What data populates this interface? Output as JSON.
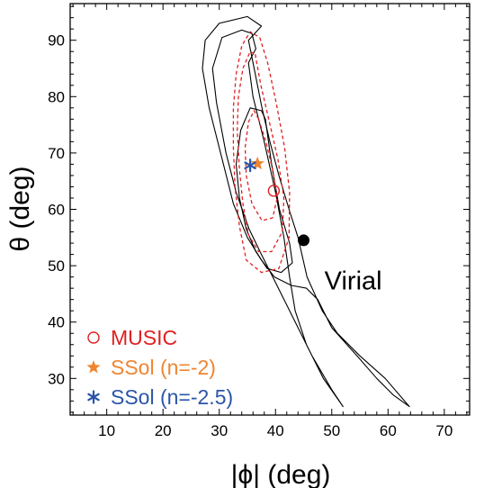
{
  "chart_data": {
    "type": "contour",
    "title": "",
    "xlabel": "|ϕ| (deg)",
    "ylabel": "θ (deg)",
    "xlim": [
      3.5,
      74.5
    ],
    "ylim": [
      23.5,
      96.5
    ],
    "xticks": [
      10,
      20,
      30,
      40,
      50,
      60,
      70
    ],
    "yticks": [
      30,
      40,
      50,
      60,
      70,
      80,
      90
    ],
    "xtick_labels": [
      "10",
      "20",
      "30",
      "40",
      "50",
      "60",
      "70"
    ],
    "ytick_labels": [
      "30",
      "40",
      "50",
      "60",
      "70",
      "80",
      "90"
    ],
    "grid": false,
    "legend_position": "bottom-left",
    "contours": [
      {
        "group": "black",
        "color": "#000000",
        "dashed": false,
        "points": [
          [
            52,
            25
          ],
          [
            48.5,
            30
          ],
          [
            45.5,
            36
          ],
          [
            43.5,
            42
          ],
          [
            42.5,
            48
          ],
          [
            41.5,
            55
          ],
          [
            40,
            63
          ],
          [
            38,
            72
          ],
          [
            36,
            80
          ],
          [
            35.2,
            86
          ],
          [
            36.5,
            88.5
          ],
          [
            35.8,
            91.2
          ],
          [
            34,
            91.8
          ],
          [
            30.5,
            90.5
          ],
          [
            28.8,
            85
          ],
          [
            29.5,
            79
          ],
          [
            31.2,
            70
          ],
          [
            33,
            63
          ],
          [
            35.3,
            56.5
          ],
          [
            37.5,
            52
          ],
          [
            40,
            47
          ],
          [
            42,
            43
          ],
          [
            44,
            39
          ],
          [
            46.5,
            34
          ],
          [
            50,
            28
          ],
          [
            52,
            25
          ]
        ]
      },
      {
        "group": "black",
        "color": "#000000",
        "dashed": false,
        "points": [
          [
            63.8,
            25
          ],
          [
            59.5,
            30
          ],
          [
            55,
            34
          ],
          [
            51,
            38
          ],
          [
            48.3,
            42
          ],
          [
            45.6,
            48
          ],
          [
            44,
            55
          ],
          [
            42.4,
            60
          ],
          [
            40.6,
            66
          ],
          [
            39,
            72
          ],
          [
            37.6,
            78
          ],
          [
            36.2,
            85
          ],
          [
            35.2,
            90
          ],
          [
            37.5,
            92.5
          ],
          [
            35,
            94.2
          ],
          [
            30,
            93
          ],
          [
            27.5,
            90
          ],
          [
            27,
            85
          ],
          [
            28.2,
            78
          ],
          [
            30.5,
            69
          ],
          [
            32.5,
            61
          ],
          [
            35,
            55
          ],
          [
            37.5,
            51
          ],
          [
            39.8,
            48
          ],
          [
            42.8,
            46.5
          ],
          [
            45.5,
            46
          ],
          [
            47.5,
            44
          ],
          [
            50,
            39
          ],
          [
            54.5,
            34
          ],
          [
            58,
            30
          ],
          [
            61,
            27
          ],
          [
            63.8,
            25
          ]
        ]
      },
      {
        "group": "black",
        "color": "#000000",
        "dashed": false,
        "points": [
          [
            38.2,
            76
          ],
          [
            39.3,
            68
          ],
          [
            40.7,
            60
          ],
          [
            42.5,
            54
          ],
          [
            43,
            50.5
          ],
          [
            41,
            48.8
          ],
          [
            38.5,
            49.5
          ],
          [
            36.5,
            52.5
          ],
          [
            34.8,
            56.5
          ],
          [
            33.6,
            62
          ],
          [
            33,
            68
          ],
          [
            33.8,
            74
          ],
          [
            35.5,
            78
          ],
          [
            37.5,
            77.5
          ],
          [
            38.2,
            76
          ]
        ]
      },
      {
        "group": "red",
        "color": "#e02020",
        "dashed": true,
        "points": [
          [
            37.2,
            90.5
          ],
          [
            38.6,
            86
          ],
          [
            40.1,
            79
          ],
          [
            41.6,
            71
          ],
          [
            42.5,
            63
          ],
          [
            42.4,
            55
          ],
          [
            40.6,
            49.5
          ],
          [
            37.5,
            48.8
          ],
          [
            34.8,
            51
          ],
          [
            33.6,
            57
          ],
          [
            32.8,
            64
          ],
          [
            32.5,
            71
          ],
          [
            32.5,
            78
          ],
          [
            33,
            84
          ],
          [
            34,
            89
          ],
          [
            35.5,
            91.5
          ],
          [
            37.2,
            90.5
          ]
        ]
      },
      {
        "group": "red",
        "color": "#e02020",
        "dashed": true,
        "points": [
          [
            36.4,
            87.5
          ],
          [
            37.4,
            82
          ],
          [
            38.8,
            76
          ],
          [
            40.4,
            69
          ],
          [
            41.5,
            62
          ],
          [
            41.2,
            56
          ],
          [
            39.3,
            52.5
          ],
          [
            37,
            52.5
          ],
          [
            35.2,
            55.5
          ],
          [
            34.2,
            61
          ],
          [
            33.6,
            67
          ],
          [
            33.2,
            74
          ],
          [
            33.4,
            80
          ],
          [
            34.2,
            85
          ],
          [
            35.5,
            88
          ],
          [
            36.4,
            87.5
          ]
        ]
      },
      {
        "group": "red",
        "color": "#e02020",
        "dashed": true,
        "points": [
          [
            37,
            76
          ],
          [
            38.3,
            72
          ],
          [
            39.5,
            67
          ],
          [
            40.3,
            62
          ],
          [
            39.5,
            58.5
          ],
          [
            37.6,
            58
          ],
          [
            35.8,
            61
          ],
          [
            34.8,
            66
          ],
          [
            34.6,
            71
          ],
          [
            35.2,
            75.5
          ],
          [
            36.2,
            77.5
          ],
          [
            37,
            76
          ]
        ]
      }
    ],
    "points": [
      {
        "label": "Virial",
        "x": 45,
        "y": 54.5,
        "marker": "filled-circle",
        "color": "#000000"
      },
      {
        "label": "MUSIC",
        "x": 39.7,
        "y": 63.3,
        "marker": "open-circle",
        "color": "#e02020"
      },
      {
        "label": "SSol (n=-2)",
        "x": 36.8,
        "y": 68.1,
        "marker": "star",
        "color": "#f08530"
      },
      {
        "label": "SSol (n=-2.5)",
        "x": 35.5,
        "y": 67.8,
        "marker": "asterisk",
        "color": "#2a55a8"
      }
    ],
    "annotations": [
      {
        "text": "Virial",
        "x": 48.7,
        "y": 47.4
      }
    ],
    "legend": [
      {
        "label": "MUSIC",
        "marker": "open-circle",
        "color": "#e02020"
      },
      {
        "label": "SSol (n=-2)",
        "marker": "star",
        "color": "#f08530"
      },
      {
        "label": "SSol (n=-2.5)",
        "marker": "asterisk",
        "color": "#2a55a8"
      }
    ]
  }
}
